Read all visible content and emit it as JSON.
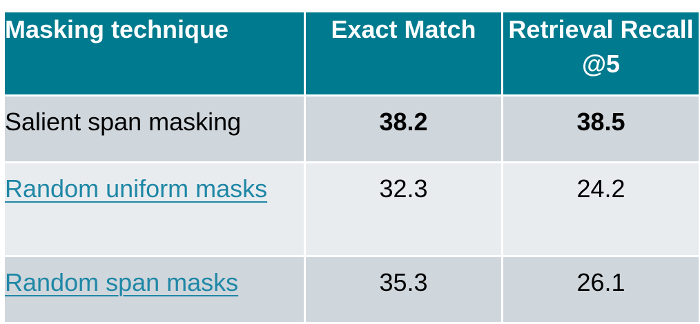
{
  "table": {
    "headers": [
      "Masking technique",
      "Exact Match",
      "Retrieval Recall @5"
    ],
    "rows": [
      {
        "technique": "Salient span masking",
        "exact_match": "38.2",
        "retrieval_recall": "38.5",
        "is_link": false,
        "bold": true
      },
      {
        "technique": "Random uniform masks",
        "exact_match": "32.3",
        "retrieval_recall": "24.2",
        "is_link": true,
        "bold": false
      },
      {
        "technique": "Random span masks",
        "exact_match": "35.3",
        "retrieval_recall": "26.1",
        "is_link": true,
        "bold": false
      }
    ]
  },
  "colors": {
    "header_bg": "#007a8e",
    "row_dark": "#cfd6dc",
    "row_light": "#e8ecef",
    "link": "#1f87a6"
  }
}
